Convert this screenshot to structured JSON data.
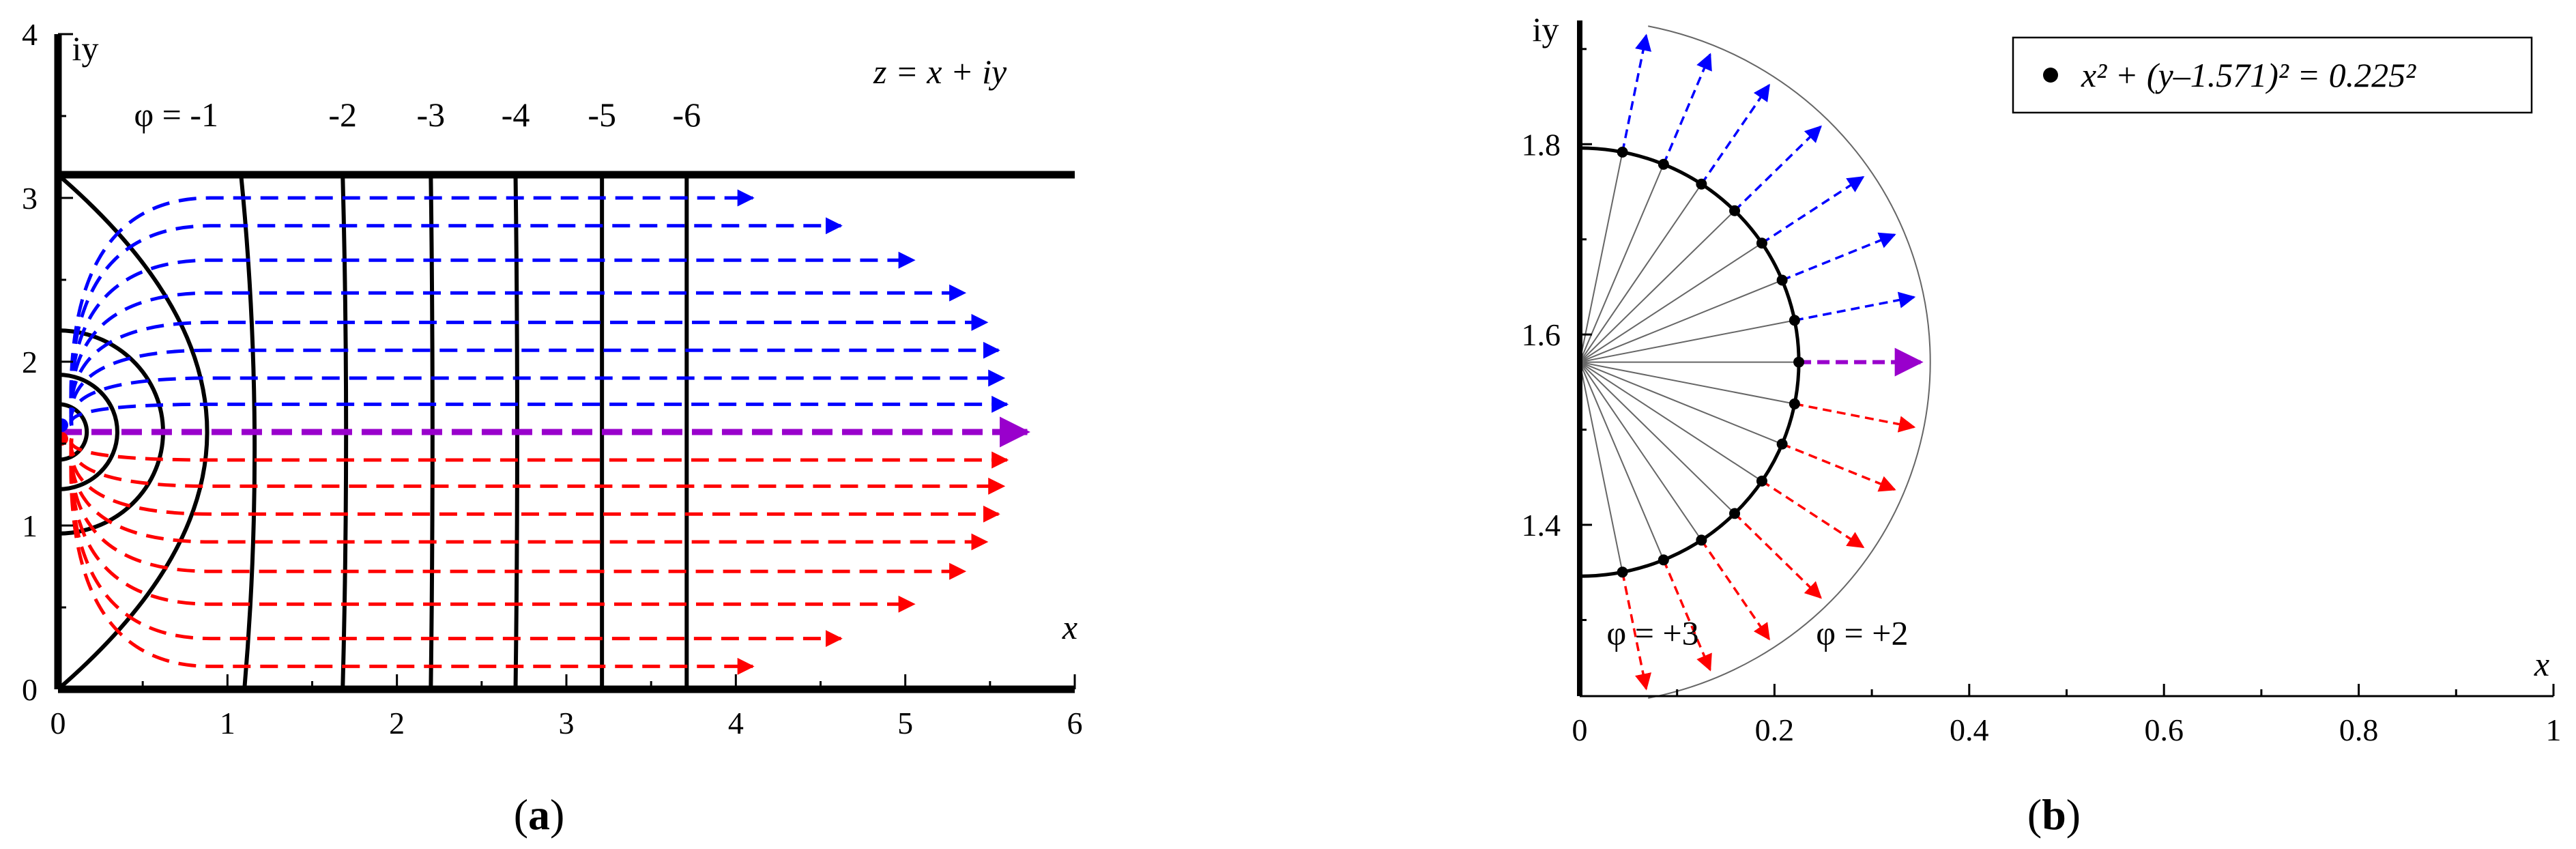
{
  "chart_data": [
    {
      "type": "line",
      "panel_label": "a",
      "equation": "z = x + iy",
      "xlabel": "x",
      "ylabel": "iy",
      "xlim": [
        0,
        6
      ],
      "ylim": [
        0,
        4
      ],
      "xticks": [
        "0",
        "1",
        "2",
        "3",
        "4",
        "5",
        "6"
      ],
      "yticks": [
        "0",
        "1",
        "2",
        "3",
        "4"
      ],
      "channel_top_y": 3.1416,
      "equipotentials": [
        {
          "label": "φ = -1",
          "value": -1,
          "x_bottom": 1.1,
          "x_top": 1.08,
          "x_mid": 1.16
        },
        {
          "label": "-2",
          "value": -2,
          "x_bottom": 1.68,
          "x_top": 1.68,
          "x_mid": 1.7
        },
        {
          "label": "-3",
          "value": -3,
          "x_bottom": 2.2,
          "x_top": 2.2,
          "x_mid": 2.21
        },
        {
          "label": "-4",
          "value": -4,
          "x_bottom": 2.7,
          "x_top": 2.7,
          "x_mid": 2.71
        },
        {
          "label": "-5",
          "value": -5,
          "x_bottom": 3.21,
          "x_top": 3.21,
          "x_mid": 3.21
        },
        {
          "label": "-6",
          "value": -6,
          "x_bottom": 3.71,
          "x_top": 3.71,
          "x_mid": 3.71
        }
      ],
      "inner_contours": [
        {
          "radius": 0.62
        },
        {
          "radius": 0.35
        },
        {
          "radius": 0.17
        }
      ],
      "outer_boundary_x_mid": 0.88,
      "blue_arrows": [
        {
          "y": 3.0,
          "x_end": 4.1
        },
        {
          "y": 2.83,
          "x_end": 4.62
        },
        {
          "y": 2.62,
          "x_end": 5.05
        },
        {
          "y": 2.42,
          "x_end": 5.35
        },
        {
          "y": 2.24,
          "x_end": 5.48
        },
        {
          "y": 2.07,
          "x_end": 5.55
        },
        {
          "y": 1.9,
          "x_end": 5.58
        },
        {
          "y": 1.74,
          "x_end": 5.6
        }
      ],
      "center_arrow": {
        "y": 1.571,
        "x_end": 5.72
      },
      "red_arrows": [
        {
          "y": 1.4,
          "x_end": 5.6
        },
        {
          "y": 1.24,
          "x_end": 5.58
        },
        {
          "y": 1.07,
          "x_end": 5.55
        },
        {
          "y": 0.9,
          "x_end": 5.48
        },
        {
          "y": 0.72,
          "x_end": 5.35
        },
        {
          "y": 0.52,
          "x_end": 5.05
        },
        {
          "y": 0.31,
          "x_end": 4.62
        },
        {
          "y": 0.14,
          "x_end": 4.1
        }
      ],
      "colors": {
        "upper": "#0000ff",
        "lower": "#ff0000",
        "center": "#9900cc",
        "contour": "#000000"
      }
    },
    {
      "type": "scatter",
      "panel_label": "b",
      "legend": "x² + (y–1.571)² = 0.225²",
      "legend_position": "top-right",
      "xlabel": "x",
      "ylabel": "iy",
      "xlim": [
        0,
        1
      ],
      "ylim": [
        1.22,
        1.93
      ],
      "xticks": [
        "0",
        "0.2",
        "0.4",
        "0.6",
        "0.8",
        "1"
      ],
      "yticks": [
        "1.4",
        "1.6",
        "1.8"
      ],
      "circle_center": [
        0,
        1.571
      ],
      "circle_radius": 0.225,
      "point_angles_deg": [
        78.75,
        67.5,
        56.25,
        45,
        33.75,
        22.5,
        11.25,
        0,
        -11.25,
        -22.5,
        -33.75,
        -45,
        -56.25,
        -67.5,
        -78.75
      ],
      "outer_arc_radius": 0.36,
      "arc_labels": [
        {
          "text": "φ = +3",
          "x": 0.075,
          "y": 1.285
        },
        {
          "text": "φ = +2",
          "x": 0.29,
          "y": 1.285
        }
      ],
      "colors": {
        "upper": "#0000ff",
        "lower": "#ff0000",
        "center": "#9900cc"
      }
    }
  ]
}
